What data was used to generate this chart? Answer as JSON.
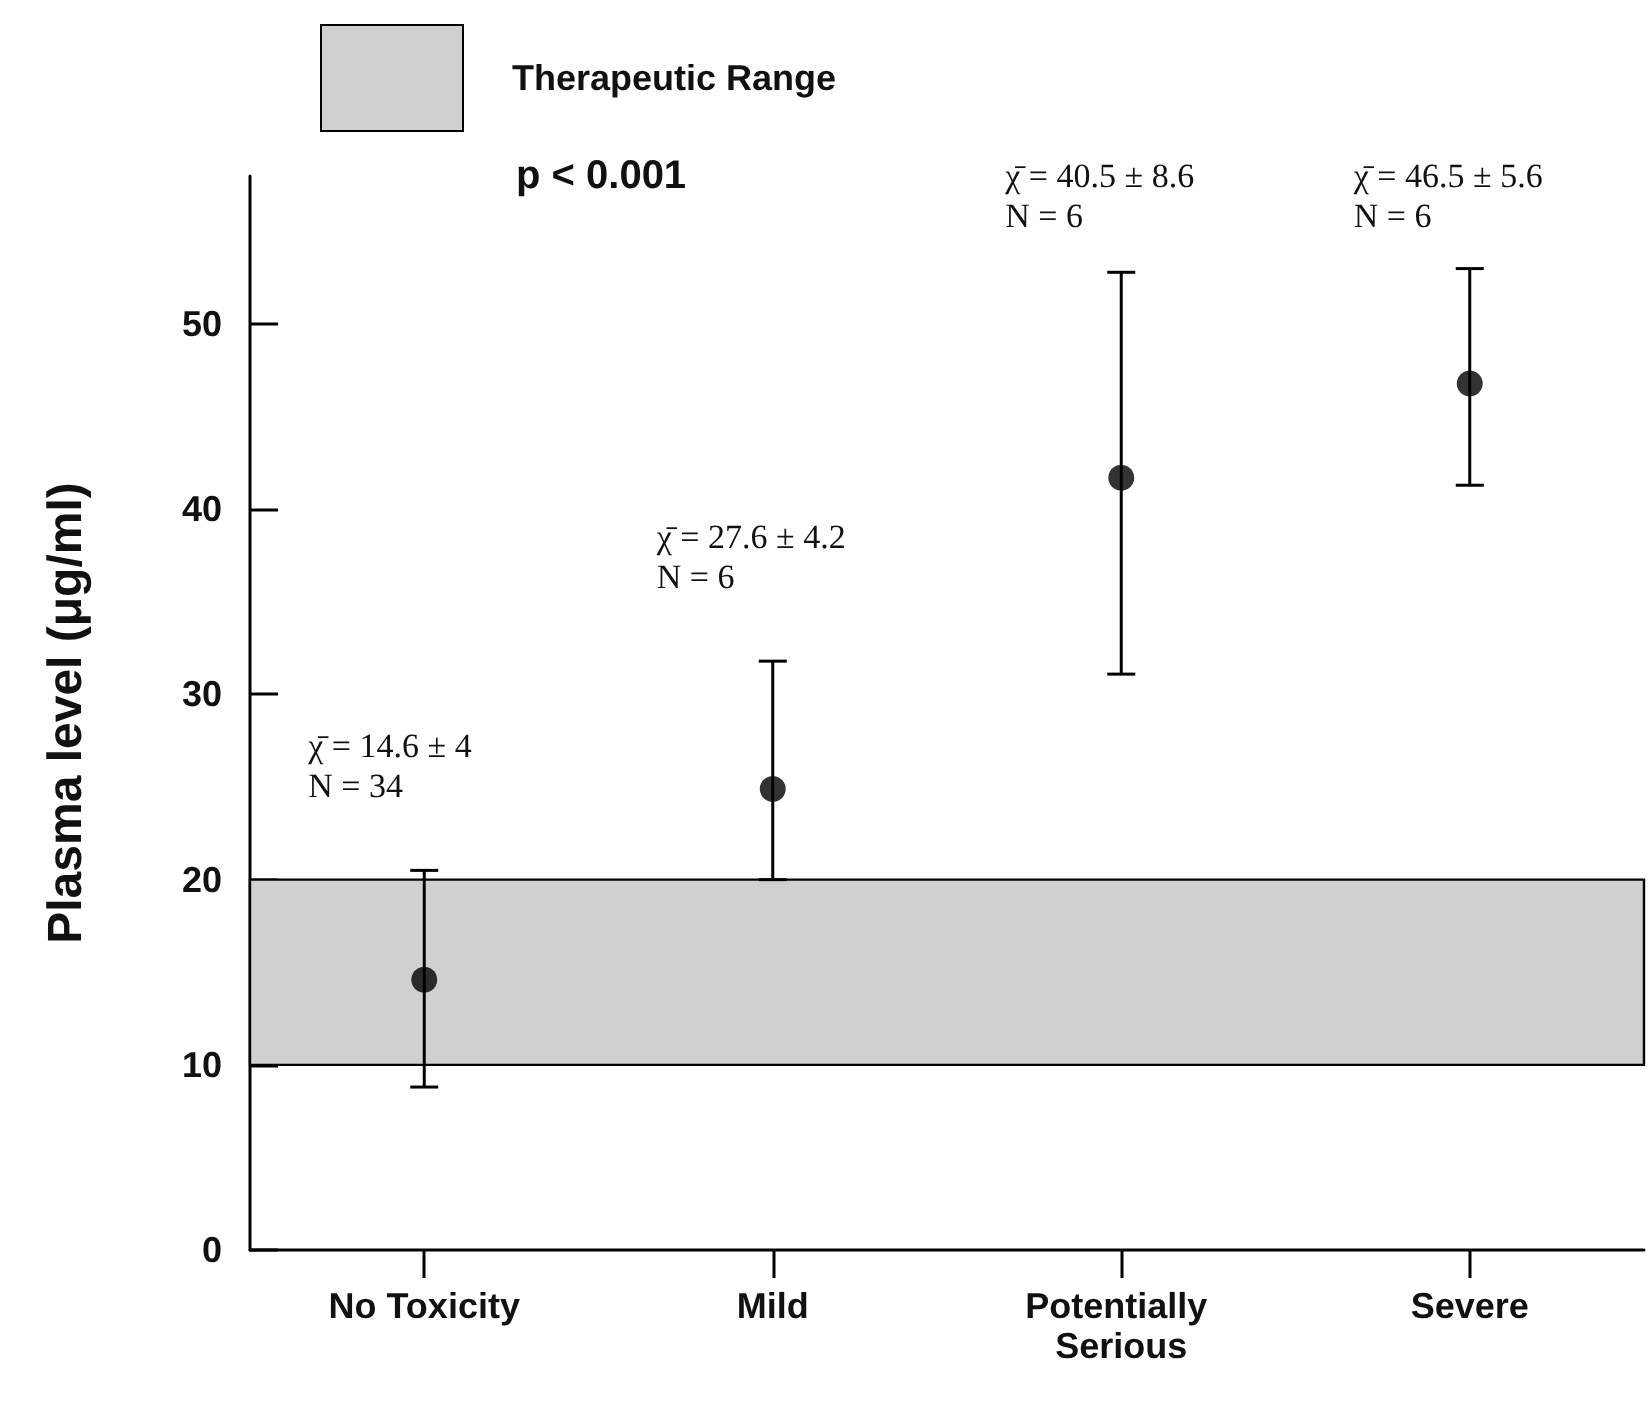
{
  "chart_data": {
    "type": "scatter",
    "ylabel": "Plasma level (μg/ml)",
    "categories": [
      "No Toxicity",
      "Mild",
      "Potentially Serious",
      "Severe"
    ],
    "series": [
      {
        "color": "#000000",
        "values": [
          14.6,
          24.9,
          41.7,
          46.8
        ],
        "errors": [
          [
            8.8,
            20.5
          ],
          [
            20,
            31.8
          ],
          [
            31.1,
            52.8
          ],
          [
            41.3,
            53.0
          ]
        ]
      }
    ],
    "ylim": [
      0,
      58
    ],
    "yticks": [
      0,
      10,
      20,
      30,
      40,
      50
    ],
    "marker": "circle",
    "grid": false,
    "legend": "top left",
    "bands": [
      {
        "axis": "y",
        "from": 10,
        "to": 20,
        "label": "Therapeutic Range",
        "color": "#d0d0d0"
      }
    ],
    "annotations": [
      "p < 0.001",
      "χ̄ = 14.6 ± 4\nN = 34",
      "χ̄ = 27.6 ± 4.2\nN = 6",
      "χ̄ = 40.5 ± 8.6\nN = 6",
      "χ̄ = 46.5 ± 5.6\nN = 6"
    ]
  }
}
